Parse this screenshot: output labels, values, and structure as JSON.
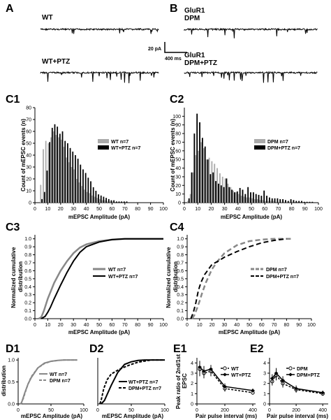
{
  "panels": {
    "A": "A",
    "B": "B",
    "C1": "C1",
    "C2": "C2",
    "C3": "C3",
    "C4": "C4",
    "D1": "D1",
    "D2": "D2",
    "E1": "E1",
    "E2": "E2"
  },
  "traces": {
    "wt": "WT",
    "wt_ptz": "WT+PTZ",
    "glur1": "GluR1",
    "dpm": "DPM",
    "glur1_b": "GluR1",
    "dpm_ptz": "DPM+PTZ"
  },
  "scalebar": {
    "amplitude": "20 pA",
    "time": "400 ms"
  },
  "colors": {
    "wt": "#aaaaaa",
    "ptz": "#000000",
    "cumulative_gray": "#888888"
  },
  "chart_data": [
    {
      "type": "bar",
      "panel": "C1",
      "xlabel": "mEPSC Amplitude (pA)",
      "ylabel": "Count of mEPSC events (n)",
      "xlim": [
        0,
        100
      ],
      "ylim": [
        0,
        80
      ],
      "xticks": [
        0,
        10,
        20,
        30,
        40,
        50,
        60,
        70,
        80,
        90,
        100
      ],
      "yticks": [
        0,
        10,
        20,
        30,
        40,
        50,
        60,
        70,
        80
      ],
      "bin_width": 2,
      "x": [
        5,
        7,
        9,
        11,
        13,
        15,
        17,
        19,
        21,
        23,
        25,
        27,
        29,
        31,
        33,
        35,
        37,
        39,
        41,
        43,
        45,
        47,
        49,
        51,
        53,
        55,
        57,
        59,
        61,
        63,
        65,
        67,
        69,
        71
      ],
      "series": [
        {
          "name": "WT  n=7",
          "values": [
            15,
            45,
            52,
            50,
            55,
            60,
            57,
            55,
            53,
            47,
            38,
            34,
            30,
            28,
            20,
            17,
            14,
            11,
            9,
            8,
            6,
            5,
            4,
            3,
            2,
            2,
            1,
            1,
            1,
            0,
            0,
            0,
            0,
            0
          ]
        },
        {
          "name": "WT+PTZ n=7",
          "values": [
            3,
            9,
            27,
            51,
            63,
            66,
            64,
            58,
            60,
            52,
            50,
            46,
            43,
            40,
            37,
            32,
            28,
            25,
            21,
            18,
            13,
            10,
            7,
            6,
            5,
            4,
            3,
            2,
            2,
            1,
            1,
            1,
            1,
            1
          ]
        }
      ]
    },
    {
      "type": "bar",
      "panel": "C2",
      "xlabel": "mEPSC Amplitude (pA)",
      "ylabel": "Count of mEPSC events (n)",
      "xlim": [
        0,
        100
      ],
      "ylim": [
        0,
        110
      ],
      "xticks": [
        0,
        10,
        20,
        30,
        40,
        50,
        60,
        70,
        80,
        90,
        100
      ],
      "yticks": [
        0,
        10,
        20,
        30,
        40,
        50,
        60,
        70,
        80,
        90,
        100
      ],
      "bin_width": 2,
      "x": [
        3,
        5,
        7,
        9,
        11,
        13,
        15,
        17,
        19,
        21,
        23,
        25,
        27,
        29,
        31,
        33,
        35,
        37,
        39,
        41,
        43,
        45,
        47,
        49,
        51,
        53,
        55,
        57,
        59,
        61,
        63,
        65,
        67,
        69,
        71,
        73,
        75,
        77,
        79,
        81,
        83,
        85,
        87,
        89,
        91,
        93,
        95
      ],
      "series": [
        {
          "name": "DPM  n=7",
          "values": [
            2,
            10,
            35,
            55,
            60,
            70,
            63,
            50,
            52,
            48,
            45,
            40,
            34,
            30,
            28,
            22,
            18,
            14,
            12,
            10,
            8,
            7,
            6,
            6,
            5,
            4,
            4,
            3,
            3,
            2,
            2,
            2,
            2,
            1,
            1,
            1,
            1,
            1,
            1,
            1,
            0,
            0,
            0,
            0,
            0,
            0,
            0
          ]
        },
        {
          "name": "DPM+PTZ n=7",
          "values": [
            5,
            35,
            80,
            103,
            93,
            75,
            65,
            50,
            33,
            35,
            25,
            22,
            20,
            18,
            28,
            18,
            15,
            12,
            13,
            17,
            15,
            10,
            18,
            12,
            12,
            10,
            9,
            8,
            14,
            8,
            6,
            5,
            5,
            5,
            4,
            4,
            3,
            2,
            4,
            3,
            2,
            2,
            2,
            1,
            1,
            1,
            1
          ]
        }
      ]
    },
    {
      "type": "line",
      "panel": "C3",
      "xlabel": "mEPSC Amplitude (pA)",
      "ylabel_lines": [
        "Normalized cumulative",
        "distribution"
      ],
      "xlim": [
        0,
        100
      ],
      "ylim": [
        0,
        1.05
      ],
      "xticks": [
        0,
        10,
        20,
        30,
        40,
        50,
        60,
        70,
        80,
        90,
        100
      ],
      "yticks": [
        0,
        0.1,
        0.2,
        0.3,
        0.4,
        0.5,
        0.6,
        0.7,
        0.8,
        0.9,
        1.0
      ],
      "series": [
        {
          "name": "WT  n=7",
          "points": [
            [
              3,
              0
            ],
            [
              5,
              0.02
            ],
            [
              7,
              0.1
            ],
            [
              10,
              0.25
            ],
            [
              15,
              0.45
            ],
            [
              20,
              0.6
            ],
            [
              25,
              0.72
            ],
            [
              30,
              0.82
            ],
            [
              35,
              0.89
            ],
            [
              40,
              0.93
            ],
            [
              50,
              0.97
            ],
            [
              60,
              0.99
            ],
            [
              70,
              1.0
            ],
            [
              100,
              1.0
            ]
          ]
        },
        {
          "name": "WT+PTZ n=7",
          "points": [
            [
              5,
              0
            ],
            [
              8,
              0.03
            ],
            [
              10,
              0.08
            ],
            [
              12,
              0.14
            ],
            [
              15,
              0.25
            ],
            [
              20,
              0.42
            ],
            [
              25,
              0.58
            ],
            [
              30,
              0.72
            ],
            [
              35,
              0.83
            ],
            [
              40,
              0.9
            ],
            [
              50,
              0.96
            ],
            [
              60,
              0.99
            ],
            [
              70,
              1.0
            ],
            [
              100,
              1.0
            ]
          ]
        }
      ]
    },
    {
      "type": "line",
      "panel": "C4",
      "xlabel": "mEPSC Amplitude (pA)",
      "ylabel_lines": [
        "Normalized cumulative",
        "distribution"
      ],
      "xlim": [
        0,
        100
      ],
      "ylim": [
        0,
        1.05
      ],
      "xticks": [
        0,
        10,
        20,
        30,
        40,
        50,
        60,
        70,
        80,
        90,
        100
      ],
      "yticks": [
        0,
        0.1,
        0.2,
        0.3,
        0.4,
        0.5,
        0.6,
        0.7,
        0.8,
        0.9,
        1.0
      ],
      "series": [
        {
          "name": "DPM  n=7",
          "points": [
            [
              4,
              0
            ],
            [
              6,
              0.05
            ],
            [
              8,
              0.13
            ],
            [
              10,
              0.22
            ],
            [
              12,
              0.32
            ],
            [
              15,
              0.45
            ],
            [
              20,
              0.62
            ],
            [
              25,
              0.73
            ],
            [
              30,
              0.82
            ],
            [
              40,
              0.92
            ],
            [
              50,
              0.97
            ],
            [
              60,
              0.99
            ],
            [
              70,
              1.0
            ],
            [
              85,
              1.0
            ]
          ]
        },
        {
          "name": "DPM+PTZ n=7",
          "points": [
            [
              3,
              0
            ],
            [
              5,
              0.08
            ],
            [
              7,
              0.2
            ],
            [
              9,
              0.35
            ],
            [
              11,
              0.45
            ],
            [
              14,
              0.55
            ],
            [
              20,
              0.68
            ],
            [
              25,
              0.72
            ],
            [
              30,
              0.77
            ],
            [
              40,
              0.84
            ],
            [
              50,
              0.9
            ],
            [
              60,
              0.95
            ],
            [
              70,
              0.98
            ],
            [
              80,
              1.0
            ]
          ]
        }
      ]
    },
    {
      "type": "line",
      "panel": "D1",
      "xlabel": "mEPSC Amplitude (pA)",
      "ylabel": "distribution",
      "xlim": [
        0,
        100
      ],
      "ylim": [
        0,
        1.05
      ],
      "xticks": [
        0,
        50,
        100
      ],
      "yticks": [
        0,
        0.5,
        1.0
      ],
      "series": [
        {
          "name": "WT   n=7",
          "points": [
            [
              3,
              0
            ],
            [
              5,
              0.02
            ],
            [
              10,
              0.25
            ],
            [
              15,
              0.45
            ],
            [
              20,
              0.6
            ],
            [
              30,
              0.82
            ],
            [
              40,
              0.93
            ],
            [
              50,
              0.97
            ],
            [
              60,
              0.99
            ],
            [
              70,
              1.0
            ],
            [
              90,
              1.0
            ]
          ]
        },
        {
          "name": "DPM n=7",
          "points": [
            [
              4,
              0
            ],
            [
              8,
              0.13
            ],
            [
              12,
              0.32
            ],
            [
              15,
              0.45
            ],
            [
              20,
              0.62
            ],
            [
              30,
              0.82
            ],
            [
              40,
              0.92
            ],
            [
              50,
              0.97
            ],
            [
              60,
              0.99
            ],
            [
              70,
              1.0
            ],
            [
              90,
              1.0
            ]
          ]
        }
      ]
    },
    {
      "type": "line",
      "panel": "D2",
      "xlabel": "mEPSC Amplitude (pA)",
      "xlim": [
        0,
        100
      ],
      "ylim": [
        0,
        1.05
      ],
      "xticks": [
        0,
        50,
        100
      ],
      "series": [
        {
          "name": "WT+PTZ n=7",
          "points": [
            [
              5,
              0
            ],
            [
              10,
              0.08
            ],
            [
              15,
              0.25
            ],
            [
              20,
              0.42
            ],
            [
              30,
              0.72
            ],
            [
              40,
              0.9
            ],
            [
              50,
              0.96
            ],
            [
              60,
              0.99
            ],
            [
              70,
              1.0
            ],
            [
              100,
              1.0
            ]
          ]
        },
        {
          "name": "DPM+PTZ n=7",
          "points": [
            [
              3,
              0
            ],
            [
              5,
              0.08
            ],
            [
              9,
              0.35
            ],
            [
              14,
              0.55
            ],
            [
              20,
              0.68
            ],
            [
              30,
              0.77
            ],
            [
              40,
              0.84
            ],
            [
              50,
              0.9
            ],
            [
              60,
              0.95
            ],
            [
              80,
              1.0
            ],
            [
              100,
              1.0
            ]
          ]
        }
      ]
    },
    {
      "type": "line",
      "panel": "E1",
      "xlabel": "Pair pulse interval (ms)",
      "ylabel_lines": [
        "Peak ratio of 2nd/1st",
        "EPSC"
      ],
      "xlim": [
        0,
        420
      ],
      "ylim": [
        0,
        4.5
      ],
      "xticks": [
        0,
        200,
        400
      ],
      "yticks": [
        0,
        1,
        2,
        3,
        4
      ],
      "series": [
        {
          "name": "WT",
          "marker": "open-circle",
          "x": [
            20,
            50,
            100,
            200,
            400
          ],
          "y": [
            3.4,
            3.0,
            3.2,
            1.5,
            1.1
          ],
          "err": [
            0.7,
            0.5,
            0.5,
            0.3,
            0.2
          ]
        },
        {
          "name": "WT+PTZ",
          "marker": "filled-diamond",
          "x": [
            20,
            50,
            100,
            200,
            400
          ],
          "y": [
            3.6,
            3.2,
            3.4,
            1.7,
            1.3
          ],
          "err": [
            0.6,
            0.5,
            0.4,
            0.3,
            0.2
          ]
        }
      ]
    },
    {
      "type": "line",
      "panel": "E2",
      "xlabel": "Pair pulse interval (ms)",
      "xlim": [
        0,
        420
      ],
      "ylim": [
        0,
        4.5
      ],
      "xticks": [
        0,
        200,
        400
      ],
      "yticks": [
        0,
        1,
        2,
        3,
        4
      ],
      "series": [
        {
          "name": "DPM",
          "marker": "open-circle",
          "x": [
            20,
            50,
            100,
            200,
            400
          ],
          "y": [
            2.2,
            2.8,
            2.0,
            1.4,
            1.0
          ],
          "err": [
            0.4,
            0.5,
            0.4,
            0.3,
            0.2
          ]
        },
        {
          "name": "DPM+PTZ",
          "marker": "filled-diamond",
          "x": [
            20,
            50,
            100,
            200,
            400
          ],
          "y": [
            2.5,
            3.0,
            2.3,
            1.5,
            1.1
          ],
          "err": [
            0.4,
            0.5,
            0.4,
            0.3,
            0.2
          ]
        }
      ]
    }
  ]
}
